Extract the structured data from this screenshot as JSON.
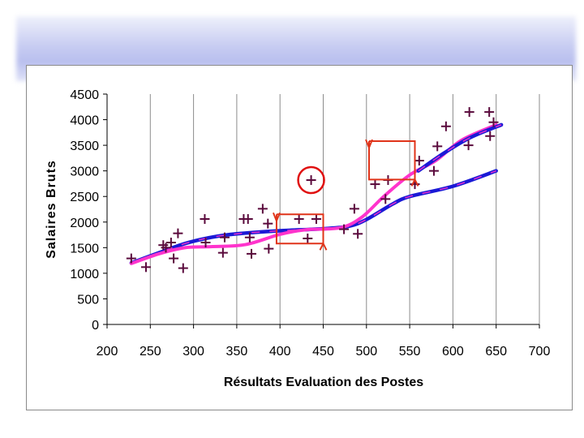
{
  "chart_data": {
    "type": "scatter",
    "title": "",
    "xlabel": "Résultats Evaluation des Postes",
    "ylabel": "Salaires Bruts",
    "xlim": [
      200,
      700
    ],
    "ylim": [
      0,
      4500
    ],
    "x_ticks": [
      "200",
      "250",
      "300",
      "350",
      "400",
      "450",
      "500",
      "550",
      "600",
      "650",
      "700"
    ],
    "y_ticks": [
      "0",
      "500",
      "1000",
      "1500",
      "2000",
      "2500",
      "3000",
      "3500",
      "4000",
      "4500"
    ],
    "grid": "vertical",
    "legend": "none",
    "colors": {
      "points": "#5a0a3c",
      "blue_curve": "#1a1ad6",
      "magenta_curve": "#ff33cc",
      "annotations": "#e0341a",
      "outlier_circle": "#e01010"
    },
    "series": [
      {
        "kind": "points",
        "points": [
          [
            228,
            1290
          ],
          [
            245,
            1120
          ],
          [
            265,
            1550
          ],
          [
            268,
            1500
          ],
          [
            274,
            1600
          ],
          [
            277,
            1290
          ],
          [
            282,
            1780
          ],
          [
            288,
            1100
          ],
          [
            313,
            2060
          ],
          [
            314,
            1600
          ],
          [
            334,
            1400
          ],
          [
            336,
            1700
          ],
          [
            358,
            2060
          ],
          [
            363,
            2060
          ],
          [
            365,
            1700
          ],
          [
            367,
            1380
          ],
          [
            380,
            2260
          ],
          [
            386,
            1970
          ],
          [
            387,
            1480
          ],
          [
            422,
            2060
          ],
          [
            432,
            1680
          ],
          [
            436,
            2820
          ],
          [
            442,
            2060
          ],
          [
            474,
            1860
          ],
          [
            486,
            2260
          ],
          [
            490,
            1770
          ],
          [
            510,
            2740
          ],
          [
            522,
            2450
          ],
          [
            525,
            2820
          ],
          [
            556,
            2740
          ],
          [
            561,
            3200
          ],
          [
            578,
            3000
          ],
          [
            582,
            3480
          ],
          [
            592,
            3870
          ],
          [
            618,
            3500
          ],
          [
            619,
            4150
          ],
          [
            642,
            4150
          ],
          [
            643,
            3680
          ],
          [
            647,
            3950
          ]
        ]
      },
      {
        "kind": "line",
        "style": "blue",
        "points": [
          [
            228,
            1200
          ],
          [
            260,
            1400
          ],
          [
            290,
            1580
          ],
          [
            320,
            1700
          ],
          [
            350,
            1770
          ],
          [
            400,
            1830
          ],
          [
            450,
            1870
          ],
          [
            480,
            1920
          ],
          [
            500,
            2050
          ],
          [
            530,
            2350
          ],
          [
            550,
            2500
          ],
          [
            600,
            2700
          ],
          [
            650,
            3000
          ]
        ]
      },
      {
        "kind": "line",
        "style": "magenta",
        "points": [
          [
            228,
            1190
          ],
          [
            260,
            1380
          ],
          [
            290,
            1500
          ],
          [
            320,
            1520
          ],
          [
            360,
            1560
          ],
          [
            400,
            1760
          ],
          [
            430,
            1850
          ],
          [
            470,
            1890
          ],
          [
            495,
            2100
          ],
          [
            520,
            2500
          ],
          [
            550,
            2920
          ],
          [
            580,
            3200
          ],
          [
            610,
            3600
          ],
          [
            650,
            3900
          ]
        ]
      },
      {
        "kind": "line",
        "style": "blue",
        "points": [
          [
            560,
            3000
          ],
          [
            590,
            3350
          ],
          [
            620,
            3650
          ],
          [
            656,
            3900
          ]
        ]
      }
    ],
    "annotations": [
      {
        "kind": "bracket",
        "x": [
          396,
          450
        ],
        "y": [
          1580,
          2150
        ]
      },
      {
        "kind": "bracket",
        "x": [
          503,
          556
        ],
        "y": [
          2830,
          3580
        ]
      },
      {
        "kind": "circle",
        "x": 436,
        "y": 2820
      }
    ]
  }
}
